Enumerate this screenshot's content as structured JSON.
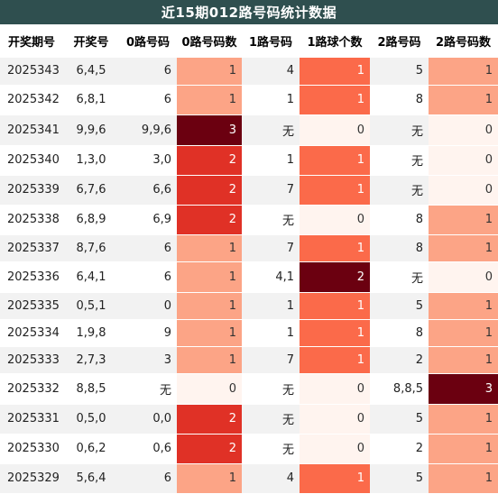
{
  "title": "近15期012路号码统计数据",
  "columns": [
    "开奖期号",
    "开奖号",
    "0路号码",
    "0路号码数",
    "1路号码",
    "1路球个数",
    "2路号码",
    "2路号码数"
  ],
  "rows": [
    {
      "period": "2025343",
      "draw": "6,4,5",
      "r0": "6",
      "r0n": "1",
      "r1": "4",
      "r1n": "1",
      "r2": "5",
      "r2n": "1"
    },
    {
      "period": "2025342",
      "draw": "6,8,1",
      "r0": "6",
      "r0n": "1",
      "r1": "1",
      "r1n": "1",
      "r2": "8",
      "r2n": "1"
    },
    {
      "period": "2025341",
      "draw": "9,9,6",
      "r0": "9,9,6",
      "r0n": "3",
      "r1": "无",
      "r1n": "0",
      "r2": "无",
      "r2n": "0"
    },
    {
      "period": "2025340",
      "draw": "1,3,0",
      "r0": "3,0",
      "r0n": "2",
      "r1": "1",
      "r1n": "1",
      "r2": "无",
      "r2n": "0"
    },
    {
      "period": "2025339",
      "draw": "6,7,6",
      "r0": "6,6",
      "r0n": "2",
      "r1": "7",
      "r1n": "1",
      "r2": "无",
      "r2n": "0"
    },
    {
      "period": "2025338",
      "draw": "6,8,9",
      "r0": "6,9",
      "r0n": "2",
      "r1": "无",
      "r1n": "0",
      "r2": "8",
      "r2n": "1"
    },
    {
      "period": "2025337",
      "draw": "8,7,6",
      "r0": "6",
      "r0n": "1",
      "r1": "7",
      "r1n": "1",
      "r2": "8",
      "r2n": "1"
    },
    {
      "period": "2025336",
      "draw": "6,4,1",
      "r0": "6",
      "r0n": "1",
      "r1": "4,1",
      "r1n": "2",
      "r2": "无",
      "r2n": "0"
    },
    {
      "period": "2025335",
      "draw": "0,5,1",
      "r0": "0",
      "r0n": "1",
      "r1": "1",
      "r1n": "1",
      "r2": "5",
      "r2n": "1"
    },
    {
      "period": "2025334",
      "draw": "1,9,8",
      "r0": "9",
      "r0n": "1",
      "r1": "1",
      "r1n": "1",
      "r2": "8",
      "r2n": "1"
    },
    {
      "period": "2025333",
      "draw": "2,7,3",
      "r0": "3",
      "r0n": "1",
      "r1": "7",
      "r1n": "1",
      "r2": "2",
      "r2n": "1"
    },
    {
      "period": "2025332",
      "draw": "8,8,5",
      "r0": "无",
      "r0n": "0",
      "r1": "无",
      "r1n": "0",
      "r2": "8,8,5",
      "r2n": "3"
    },
    {
      "period": "2025331",
      "draw": "0,5,0",
      "r0": "0,0",
      "r0n": "2",
      "r1": "无",
      "r1n": "0",
      "r2": "5",
      "r2n": "1"
    },
    {
      "period": "2025330",
      "draw": "0,6,2",
      "r0": "0,6",
      "r0n": "2",
      "r1": "无",
      "r1n": "0",
      "r2": "2",
      "r2n": "1"
    },
    {
      "period": "2025329",
      "draw": "5,6,4",
      "r0": "6",
      "r0n": "1",
      "r1": "4",
      "r1n": "1",
      "r2": "5",
      "r2n": "1"
    }
  ],
  "colors": {
    "header_bg": "#2f4f4f",
    "count_0": "#fff4ef",
    "count_1": "#fca486",
    "count_2": "#e03126",
    "count_3": "#6b0010",
    "r1_count_1": "#fb6a4a",
    "r1_count_2": "#6b0010"
  }
}
